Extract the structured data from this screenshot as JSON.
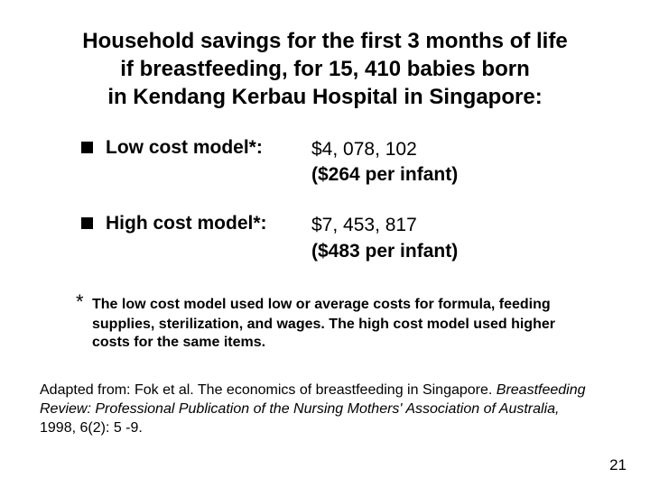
{
  "title_line1": "Household savings for the first 3 months of life",
  "title_line2": "if breastfeeding, for 15, 410 babies born",
  "title_line3": "in Kendang Kerbau Hospital in Singapore:",
  "bullets": [
    {
      "label": "Low cost model*:",
      "value_total": "$4, 078, 102",
      "value_per": "($264 per infant)"
    },
    {
      "label": "High cost model*:",
      "value_total": "$7, 453, 817",
      "value_per": "($483 per infant)"
    }
  ],
  "footnote_star": "*",
  "footnote_bold": "The low cost model used low or average costs for formula, feeding supplies, sterilization, and wages.  The high cost model used higher costs for the same items.",
  "citation_prefix": "Adapted from: Fok et al. The economics of breastfeeding in Singapore. ",
  "citation_italic": "Breastfeeding Review: Professional Publication of the Nursing Mothers' Association of Australia,",
  "citation_suffix": " 1998, 6(2): 5 -9.",
  "page_number": "21",
  "colors": {
    "background": "#ffffff",
    "text": "#000000",
    "bullet_marker": "#000000"
  },
  "typography": {
    "title_fontsize": 24,
    "body_fontsize": 21,
    "footnote_fontsize": 16,
    "citation_fontsize": 16,
    "pagenum_fontsize": 17,
    "font_family": "Arial"
  }
}
